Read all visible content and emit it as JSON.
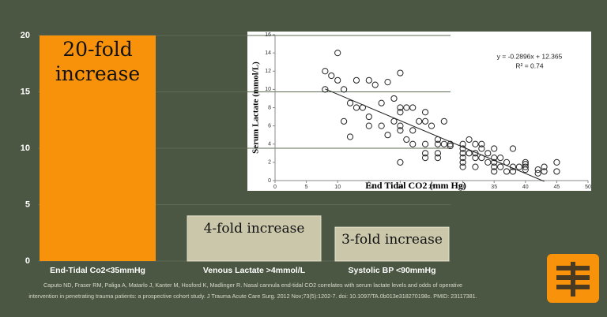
{
  "chart_data": [
    {
      "type": "bar",
      "categories": [
        "End-Tidal Co2<35mmHg",
        "Venous Lactate >4mmol/L",
        "Systolic BP <90mmHg"
      ],
      "values": [
        20,
        4,
        3
      ],
      "value_labels": [
        "20-fold increase",
        "4-fold increase",
        "3-fold increase"
      ],
      "colors": [
        "#f7920a",
        "#cbc7ab",
        "#cbc7ab"
      ],
      "ylim": [
        0,
        20
      ],
      "yticks": [
        0,
        5,
        10,
        15,
        20
      ],
      "grid": true
    },
    {
      "type": "scatter",
      "xlabel": "End Tidal CO2 (mm Hg)",
      "ylabel": "Serum Lactate (mmol/L)",
      "annotations": [
        "y = -0.2896x + 12.365",
        "R² = 0.74"
      ],
      "trendline": {
        "slope": -0.2896,
        "intercept": 12.365,
        "x_start": 8,
        "x_end": 43
      },
      "xlim": [
        0,
        50
      ],
      "xticks": [
        0,
        5,
        10,
        15,
        20,
        25,
        30,
        35,
        40,
        45,
        50
      ],
      "ylim": [
        0,
        16
      ],
      "yticks": [
        0,
        2,
        4,
        6,
        8,
        10,
        12,
        14,
        16
      ],
      "x": [
        8,
        8,
        9,
        10,
        10,
        11,
        11,
        12,
        12,
        13,
        13,
        14,
        15,
        15,
        15,
        16,
        17,
        17,
        18,
        18,
        19,
        19,
        20,
        20,
        20,
        20,
        20,
        20,
        21,
        21,
        22,
        22,
        22,
        23,
        24,
        24,
        24,
        24,
        24,
        25,
        26,
        26,
        26,
        26,
        27,
        27,
        28,
        28,
        30,
        30,
        30,
        30,
        30,
        30,
        31,
        31,
        32,
        32,
        32,
        32,
        33,
        33,
        33,
        34,
        34,
        35,
        35,
        35,
        35,
        35,
        36,
        36,
        37,
        37,
        38,
        38,
        38,
        39,
        40,
        40,
        40,
        40,
        42,
        42,
        43,
        43,
        45,
        45
      ],
      "values": [
        12,
        10,
        11.5,
        14,
        11,
        10,
        6.5,
        4.8,
        8.5,
        8,
        11,
        8,
        11,
        7,
        6,
        10.5,
        6,
        8.5,
        10.8,
        5,
        6.5,
        9,
        11.8,
        8,
        7.5,
        6,
        5.5,
        2,
        8,
        4.5,
        8,
        5.5,
        4,
        6.5,
        7.5,
        6.5,
        4,
        3,
        2.5,
        6,
        4.5,
        4,
        3,
        2.5,
        6.5,
        4,
        4,
        3.8,
        4,
        3.5,
        3,
        2.5,
        2,
        1.5,
        4.5,
        3,
        4,
        3,
        2.5,
        1.5,
        4,
        3.5,
        2.5,
        3,
        2,
        3.5,
        2.5,
        2,
        1.5,
        1,
        2.5,
        1.5,
        1,
        2,
        3.5,
        1.5,
        1,
        1.5,
        2,
        1.8,
        1.5,
        1.2,
        1.2,
        0.8,
        1.5,
        1,
        2,
        1
      ]
    }
  ],
  "citation": [
    "Caputo ND, Fraser RM, Paliga A, Matarlo J, Kanter M, Hosford K, Madlinger R. Nasal cannula end-tidal CO2 correlates with serum lactate levels and odds of operative",
    "intervention in penetrating trauma patients: a prospective cohort study. J Trauma Acute Care Surg. 2012 Nov;73(5):1202-7. doi: 10.1097/TA.0b013e318270198c. PMID: 23117381."
  ]
}
